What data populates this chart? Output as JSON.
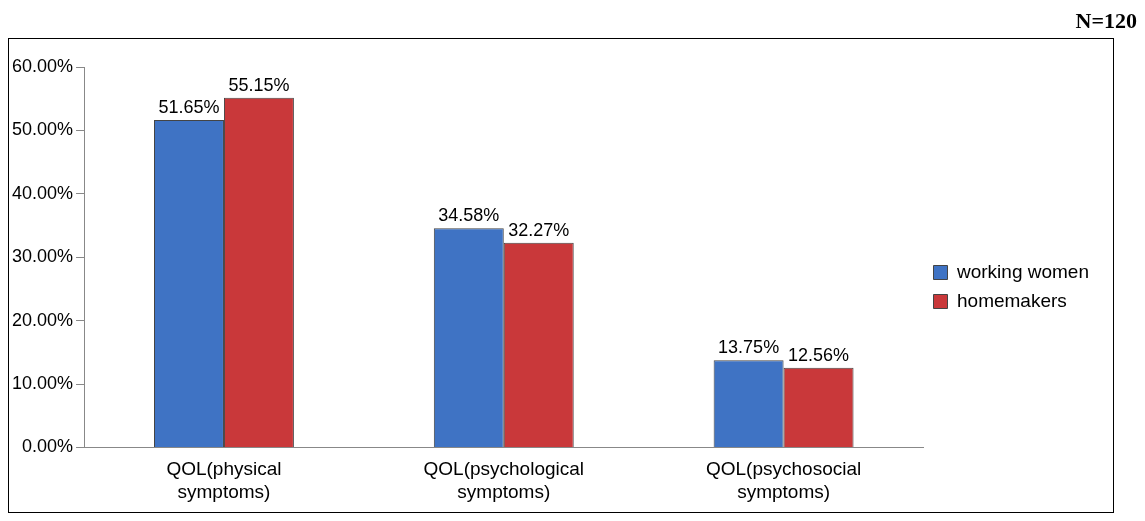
{
  "chart_data": {
    "type": "bar",
    "categories": [
      "QOL(physical symptoms)",
      "QOL(psychological symptoms)",
      "QOL(psychosocial symptoms)"
    ],
    "series": [
      {
        "name": "working women",
        "color": "#3f73c4",
        "values": [
          51.65,
          34.58,
          13.75
        ],
        "value_labels": [
          "51.65%",
          "34.58%",
          "13.75%"
        ]
      },
      {
        "name": "homemakers",
        "color": "#c9383a",
        "values": [
          55.15,
          32.27,
          12.56
        ],
        "value_labels": [
          "55.15%",
          "32.27%",
          "12.56%"
        ]
      }
    ],
    "ylim": [
      0,
      60
    ],
    "yticks": [
      {
        "value": 0,
        "label": "0.00%"
      },
      {
        "value": 10,
        "label": "10.00%"
      },
      {
        "value": 20,
        "label": "20.00%"
      },
      {
        "value": 30,
        "label": "30.00%"
      },
      {
        "value": 40,
        "label": "40.00%"
      },
      {
        "value": 50,
        "label": "50.00%"
      },
      {
        "value": 60,
        "label": "60.00%"
      }
    ],
    "grid": false,
    "legend": "right",
    "annotations": [
      "N=120"
    ]
  }
}
